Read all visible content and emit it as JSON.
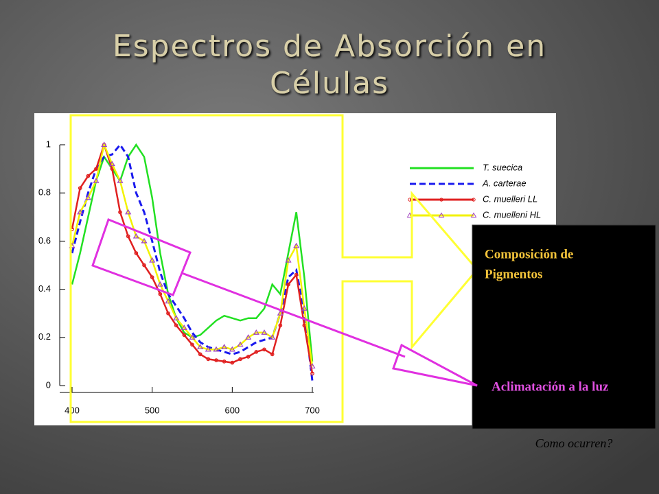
{
  "slide": {
    "title": [
      "Espectros de Absorción en",
      "Células"
    ]
  },
  "annotations": {
    "pigments": [
      "Composición de",
      "Pigmentos"
    ],
    "light": "Aclimatación a la luz",
    "question": "Como ocurren?"
  },
  "chart_data": {
    "type": "line",
    "x": [
      400,
      410,
      420,
      430,
      440,
      450,
      460,
      470,
      480,
      490,
      500,
      510,
      520,
      530,
      540,
      550,
      560,
      570,
      580,
      590,
      600,
      610,
      620,
      630,
      640,
      650,
      660,
      670,
      680,
      690,
      700
    ],
    "xlim": [
      400,
      700
    ],
    "xticks": [
      400,
      500,
      600,
      700
    ],
    "ylim": [
      0,
      1
    ],
    "yticks": [
      0,
      0.2,
      0.4,
      0.6,
      0.8,
      1
    ],
    "series": [
      {
        "name": "T. suecica",
        "color": "#22e022",
        "dashed": false,
        "marker": "none",
        "values": [
          0.42,
          0.55,
          0.7,
          0.85,
          0.95,
          0.9,
          0.85,
          0.95,
          1.0,
          0.95,
          0.78,
          0.55,
          0.38,
          0.28,
          0.22,
          0.2,
          0.21,
          0.24,
          0.27,
          0.29,
          0.28,
          0.27,
          0.28,
          0.28,
          0.32,
          0.42,
          0.38,
          0.55,
          0.72,
          0.45,
          0.1
        ]
      },
      {
        "name": "A. carterae",
        "color": "#1a1aee",
        "dashed": true,
        "marker": "none",
        "values": [
          0.55,
          0.68,
          0.8,
          0.9,
          0.95,
          0.96,
          1.0,
          0.95,
          0.8,
          0.72,
          0.6,
          0.47,
          0.38,
          0.33,
          0.28,
          0.22,
          0.18,
          0.16,
          0.15,
          0.14,
          0.13,
          0.14,
          0.16,
          0.18,
          0.19,
          0.2,
          0.3,
          0.45,
          0.48,
          0.3,
          0.02
        ]
      },
      {
        "name": "C. muelleri LL",
        "color": "#e02020",
        "dashed": false,
        "marker": "circle",
        "marker_color": "#e02020",
        "values": [
          0.65,
          0.82,
          0.87,
          0.9,
          1.0,
          0.9,
          0.72,
          0.62,
          0.55,
          0.5,
          0.45,
          0.38,
          0.3,
          0.25,
          0.21,
          0.17,
          0.13,
          0.11,
          0.105,
          0.1,
          0.095,
          0.11,
          0.12,
          0.14,
          0.15,
          0.13,
          0.25,
          0.42,
          0.46,
          0.25,
          0.05
        ]
      },
      {
        "name": "C. muelleni HL",
        "color": "#f2f200",
        "dashed": false,
        "marker": "triangle",
        "marker_color": "#a040c0",
        "values": [
          0.58,
          0.72,
          0.78,
          0.85,
          1.0,
          0.92,
          0.85,
          0.72,
          0.62,
          0.6,
          0.52,
          0.42,
          0.35,
          0.28,
          0.24,
          0.2,
          0.16,
          0.15,
          0.15,
          0.16,
          0.15,
          0.17,
          0.2,
          0.22,
          0.22,
          0.2,
          0.3,
          0.52,
          0.58,
          0.32,
          0.08
        ]
      }
    ]
  }
}
